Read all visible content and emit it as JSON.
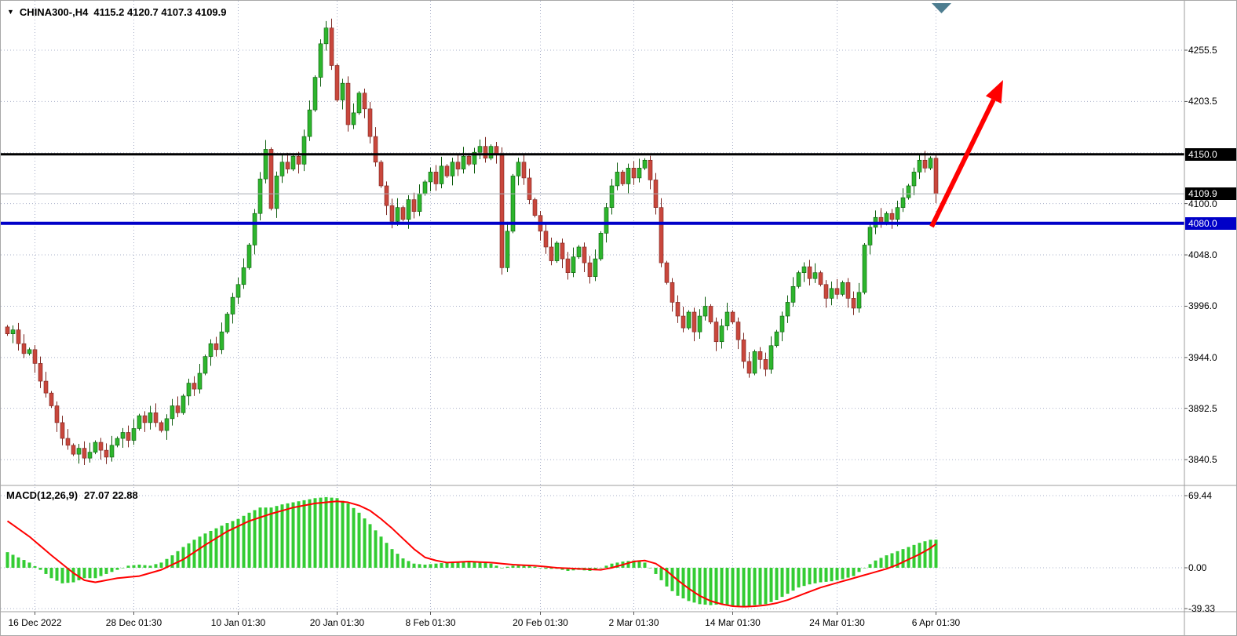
{
  "title_bar": {
    "dropdown_icon": "▼",
    "symbol": "CHINA300-,H4",
    "quote": "4115.2 4120.7 4107.3 4109.9"
  },
  "macd_panel": {
    "label": "MACD(12,26,9)",
    "values": "27.07 22.88"
  },
  "price_axis": {
    "plain_ticks": [
      "4255.5",
      "4203.5",
      "4100.0",
      "4048.0",
      "3996.0",
      "3944.0",
      "3892.5",
      "3840.5"
    ],
    "plain_tick_values": [
      4255.5,
      4203.5,
      4100.0,
      4048.0,
      3996.0,
      3944.0,
      3892.5,
      3840.5
    ],
    "badges": [
      {
        "label": "4150.0",
        "value": 4150.0,
        "bg": "#000000"
      },
      {
        "label": "4109.9",
        "value": 4109.9,
        "bg": "#000000"
      },
      {
        "label": "4080.0",
        "value": 4080.0,
        "bg": "#0000C8"
      }
    ]
  },
  "macd_axis": {
    "ticks": [
      "69.44",
      "0.00",
      "-39.33"
    ],
    "tick_values": [
      69.44,
      0,
      -39.33
    ]
  },
  "time_axis": {
    "labels": [
      "16 Dec 2022",
      "28 Dec 01:30",
      "10 Jan 01:30",
      "20 Jan 01:30",
      "8 Feb 01:30",
      "20 Feb 01:30",
      "2 Mar 01:30",
      "14 Mar 01:30",
      "24 Mar 01:30",
      "6 Apr 01:30"
    ],
    "candle_indices": [
      5,
      23,
      42,
      60,
      77,
      97,
      114,
      132,
      151,
      169
    ]
  },
  "levels": {
    "resistance": {
      "value": 4150.0,
      "color": "#000000",
      "width": 3
    },
    "support": {
      "value": 4080.0,
      "color": "#0000C8",
      "width": 4
    },
    "current_price": {
      "value": 4109.9,
      "color": "#a9adb5",
      "width": 1
    }
  },
  "annotations": {
    "trend_arrow": {
      "color": "#FF0000",
      "direction": "up",
      "from_price": 4082,
      "to_price": 4235
    },
    "scroll_marker_color": "#4d7d90"
  },
  "colors": {
    "background": "#ffffff",
    "grid": "#a9b0c9",
    "bull": "#2db52d",
    "bull_border": "#0a5a0a",
    "bear": "#c9473c",
    "bear_border": "#7a241e",
    "macd_histogram": "#33cc33",
    "macd_signal": "#ff0000",
    "separator": "#9c9c9c",
    "axis_text": "#000000"
  },
  "chart_data": [
    {
      "type": "candlestick",
      "title": "CHINA300-,H4 4115.2 4120.7 4107.3 4109.9",
      "symbol": "CHINA300-",
      "timeframe": "H4",
      "ohlc_current": {
        "open": 4115.2,
        "high": 4120.7,
        "low": 4107.3,
        "close": 4109.9
      },
      "ylim": [
        3815,
        4300
      ],
      "y_ticks": [
        3840.5,
        3892.5,
        3944.0,
        3996.0,
        4048.0,
        4100.0,
        4151.5,
        4203.5,
        4255.5
      ],
      "x_tick_labels": [
        "16 Dec 2022",
        "28 Dec 01:30",
        "10 Jan 01:30",
        "20 Jan 01:30",
        "8 Feb 01:30",
        "20 Feb 01:30",
        "2 Mar 01:30",
        "14 Mar 01:30",
        "24 Mar 01:30",
        "6 Apr 01:30"
      ],
      "grid": true,
      "first_open": 3975,
      "closes": [
        3968,
        3972,
        3958,
        3948,
        3952,
        3938,
        3920,
        3908,
        3895,
        3878,
        3862,
        3855,
        3846,
        3852,
        3842,
        3848,
        3858,
        3850,
        3843,
        3855,
        3862,
        3868,
        3860,
        3872,
        3885,
        3878,
        3888,
        3878,
        3870,
        3882,
        3895,
        3888,
        3905,
        3918,
        3912,
        3928,
        3945,
        3958,
        3952,
        3970,
        3988,
        4005,
        4018,
        4035,
        4058,
        4090,
        4125,
        4155,
        4095,
        4128,
        4142,
        4135,
        4148,
        4140,
        4168,
        4195,
        4228,
        4262,
        4278,
        4240,
        4205,
        4222,
        4180,
        4192,
        4212,
        4196,
        4168,
        4142,
        4118,
        4098,
        4082,
        4096,
        4084,
        4104,
        4092,
        4110,
        4122,
        4132,
        4120,
        4138,
        4128,
        4142,
        4135,
        4148,
        4140,
        4152,
        4158,
        4146,
        4158,
        4150,
        4035,
        4072,
        4128,
        4142,
        4126,
        4104,
        4088,
        4072,
        4056,
        4042,
        4060,
        4044,
        4030,
        4046,
        4056,
        4040,
        4026,
        4044,
        4070,
        4096,
        4118,
        4132,
        4120,
        4136,
        4126,
        4136,
        4144,
        4124,
        4096,
        4040,
        4020,
        4000,
        3986,
        3974,
        3990,
        3970,
        3986,
        3996,
        3980,
        3960,
        3976,
        3990,
        3980,
        3962,
        3940,
        3928,
        3950,
        3942,
        3932,
        3956,
        3970,
        3986,
        4000,
        4016,
        4030,
        4036,
        4024,
        4030,
        4018,
        4004,
        4014,
        4008,
        4020,
        4004,
        3994,
        4010,
        4058,
        4076,
        4086,
        4080,
        4090,
        4084,
        4096,
        4106,
        4118,
        4132,
        4144,
        4136,
        4146,
        4109.9
      ]
    },
    {
      "type": "bar",
      "title": "MACD(12,26,9)",
      "current_macd": 27.07,
      "current_signal": 22.88,
      "ylim": [
        -45,
        75
      ],
      "y_ticks": [
        69.44,
        0,
        -39.33
      ],
      "histogram_anchors": [
        [
          0,
          15
        ],
        [
          2,
          10
        ],
        [
          4,
          5
        ],
        [
          6,
          -2
        ],
        [
          8,
          -10
        ],
        [
          10,
          -15
        ],
        [
          12,
          -14
        ],
        [
          14,
          -10
        ],
        [
          16,
          -10
        ],
        [
          18,
          -6
        ],
        [
          20,
          -2
        ],
        [
          22,
          2
        ],
        [
          24,
          3
        ],
        [
          26,
          2
        ],
        [
          28,
          5
        ],
        [
          30,
          12
        ],
        [
          32,
          20
        ],
        [
          34,
          27
        ],
        [
          36,
          33
        ],
        [
          38,
          38
        ],
        [
          40,
          43
        ],
        [
          42,
          47
        ],
        [
          44,
          53
        ],
        [
          46,
          58
        ],
        [
          48,
          58
        ],
        [
          50,
          61
        ],
        [
          52,
          63
        ],
        [
          54,
          65
        ],
        [
          56,
          67
        ],
        [
          58,
          68
        ],
        [
          60,
          67
        ],
        [
          62,
          62
        ],
        [
          64,
          53
        ],
        [
          66,
          42
        ],
        [
          68,
          30
        ],
        [
          70,
          18
        ],
        [
          72,
          9
        ],
        [
          74,
          4
        ],
        [
          76,
          3
        ],
        [
          78,
          4
        ],
        [
          80,
          5
        ],
        [
          82,
          6
        ],
        [
          84,
          6
        ],
        [
          86,
          6
        ],
        [
          88,
          4
        ],
        [
          90,
          0
        ],
        [
          92,
          2
        ],
        [
          94,
          3
        ],
        [
          96,
          1
        ],
        [
          98,
          -1
        ],
        [
          100,
          -1
        ],
        [
          102,
          -3
        ],
        [
          104,
          -2
        ],
        [
          106,
          -3
        ],
        [
          108,
          0
        ],
        [
          110,
          4
        ],
        [
          112,
          6
        ],
        [
          114,
          7
        ],
        [
          116,
          5
        ],
        [
          117,
          0
        ],
        [
          118,
          -6
        ],
        [
          120,
          -18
        ],
        [
          122,
          -27
        ],
        [
          124,
          -32
        ],
        [
          126,
          -35
        ],
        [
          128,
          -36
        ],
        [
          130,
          -35
        ],
        [
          132,
          -37
        ],
        [
          134,
          -38
        ],
        [
          136,
          -36
        ],
        [
          138,
          -35
        ],
        [
          140,
          -31
        ],
        [
          142,
          -25
        ],
        [
          144,
          -19
        ],
        [
          146,
          -16
        ],
        [
          148,
          -14
        ],
        [
          150,
          -13
        ],
        [
          152,
          -11
        ],
        [
          154,
          -8
        ],
        [
          156,
          0
        ],
        [
          158,
          7
        ],
        [
          160,
          12
        ],
        [
          162,
          16
        ],
        [
          164,
          20
        ],
        [
          166,
          24
        ],
        [
          168,
          27
        ],
        [
          169,
          27.07
        ]
      ],
      "signal_anchors": [
        [
          0,
          45
        ],
        [
          4,
          30
        ],
        [
          8,
          12
        ],
        [
          12,
          -5
        ],
        [
          14,
          -12
        ],
        [
          16,
          -14
        ],
        [
          20,
          -10
        ],
        [
          24,
          -8
        ],
        [
          28,
          -2
        ],
        [
          32,
          8
        ],
        [
          36,
          22
        ],
        [
          40,
          35
        ],
        [
          44,
          45
        ],
        [
          48,
          52
        ],
        [
          52,
          58
        ],
        [
          56,
          62
        ],
        [
          60,
          64
        ],
        [
          62,
          63
        ],
        [
          64,
          60
        ],
        [
          66,
          55
        ],
        [
          68,
          47
        ],
        [
          70,
          38
        ],
        [
          72,
          28
        ],
        [
          74,
          18
        ],
        [
          76,
          10
        ],
        [
          78,
          7
        ],
        [
          80,
          5
        ],
        [
          84,
          6
        ],
        [
          88,
          5
        ],
        [
          92,
          3
        ],
        [
          96,
          2
        ],
        [
          100,
          0
        ],
        [
          104,
          -1
        ],
        [
          108,
          -2
        ],
        [
          110,
          0
        ],
        [
          112,
          3
        ],
        [
          114,
          6
        ],
        [
          116,
          7
        ],
        [
          118,
          4
        ],
        [
          120,
          -3
        ],
        [
          122,
          -12
        ],
        [
          124,
          -20
        ],
        [
          126,
          -27
        ],
        [
          128,
          -32
        ],
        [
          130,
          -35
        ],
        [
          132,
          -37
        ],
        [
          134,
          -37.5
        ],
        [
          136,
          -37
        ],
        [
          138,
          -36
        ],
        [
          140,
          -34
        ],
        [
          142,
          -31
        ],
        [
          144,
          -27
        ],
        [
          146,
          -23
        ],
        [
          148,
          -19
        ],
        [
          150,
          -16
        ],
        [
          152,
          -13
        ],
        [
          154,
          -10
        ],
        [
          156,
          -7
        ],
        [
          158,
          -4
        ],
        [
          160,
          -1
        ],
        [
          162,
          3
        ],
        [
          164,
          8
        ],
        [
          166,
          13
        ],
        [
          168,
          19
        ],
        [
          169,
          22.88
        ]
      ]
    }
  ]
}
